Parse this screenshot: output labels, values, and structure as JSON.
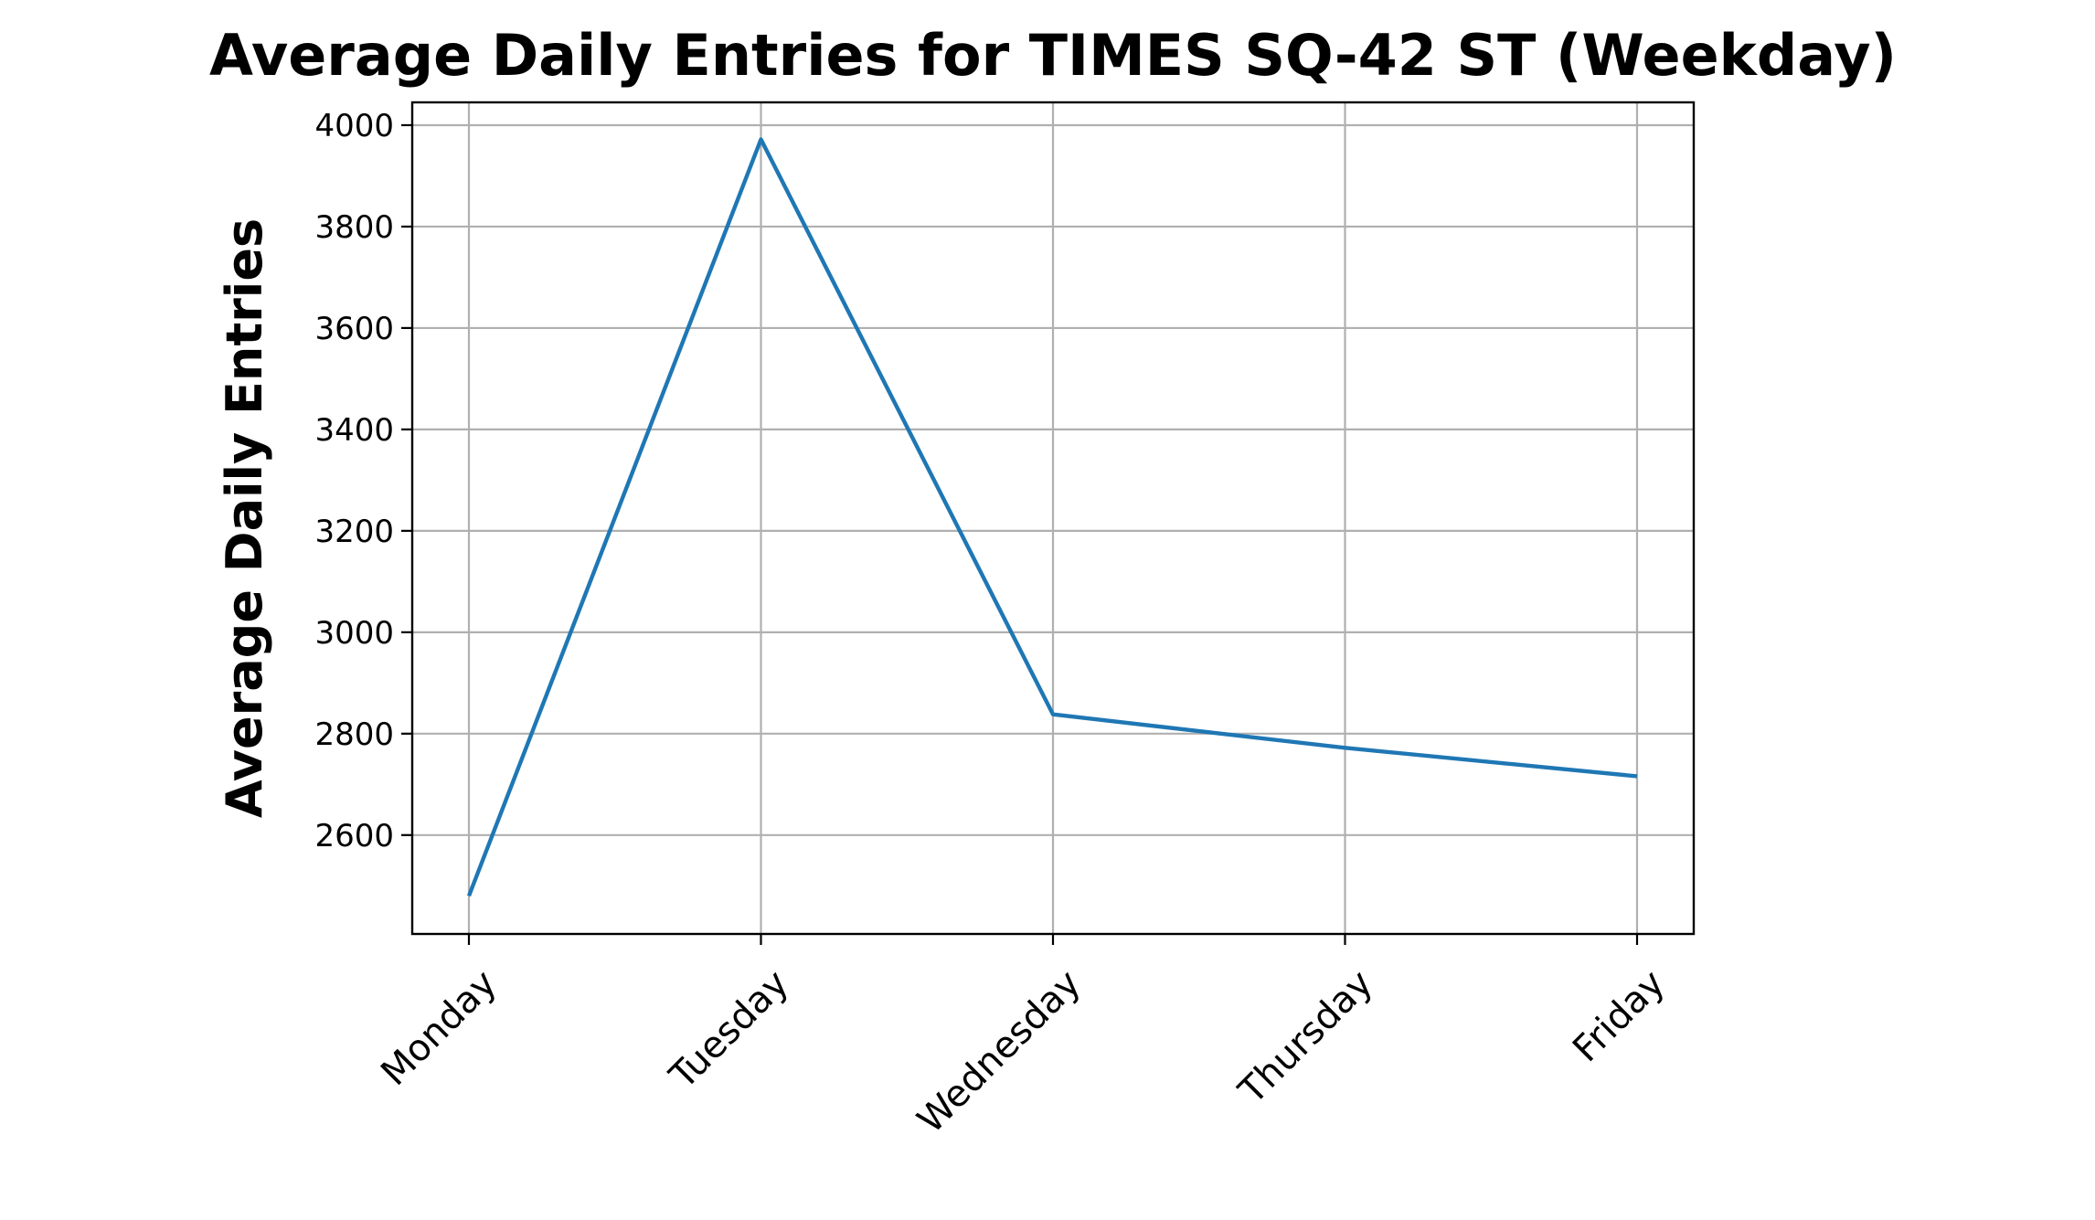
{
  "chart_data": {
    "type": "line",
    "title": "Average Daily Entries for TIMES SQ-42 ST (Weekday)",
    "xlabel": "",
    "ylabel": "Average Daily Entries",
    "categories": [
      "Monday",
      "Tuesday",
      "Wednesday",
      "Thursday",
      "Friday"
    ],
    "series": [
      {
        "values": [
          2480,
          3972,
          2838,
          2772,
          2716
        ],
        "color": "#1f77b4"
      }
    ],
    "ylim": [
      2405,
      4045
    ],
    "yticks": [
      2600,
      2800,
      3000,
      3200,
      3400,
      3600,
      3800,
      4000
    ],
    "grid": true,
    "legend": "none"
  }
}
